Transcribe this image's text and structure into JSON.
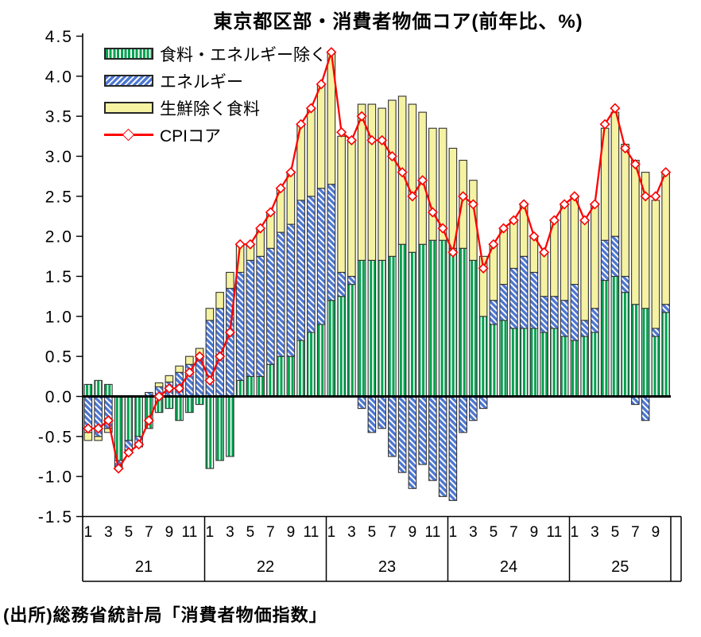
{
  "source_note": "(出所)総務省統計局「消費者物価指数」",
  "chart_data": {
    "type": "stacked-bar-with-line",
    "title": "東京都区部・消費者物価コア(前年比、%)",
    "unit": "percentage points (contribution) / % (line)",
    "y_axis": {
      "min": -1.5,
      "max": 4.5,
      "step": 0.5,
      "tick_labels": [
        "4.5",
        "4.0",
        "3.5",
        "3.0",
        "2.5",
        "2.0",
        "1.5",
        "1.0",
        "0.5",
        "0.0",
        "-0.5",
        "-1.0",
        "-1.5"
      ]
    },
    "x_axis": {
      "years": [
        {
          "label": "21",
          "n_months": 12
        },
        {
          "label": "22",
          "n_months": 12
        },
        {
          "label": "23",
          "n_months": 12
        },
        {
          "label": "24",
          "n_months": 12
        },
        {
          "label": "25",
          "n_months": 10
        }
      ],
      "first_month": 1,
      "month_label_interval": 2,
      "month_labels_shown": [
        "1",
        "3",
        "5",
        "7",
        "9",
        "11"
      ]
    },
    "colors": {
      "green": "#00A24E",
      "blue": "#4D77D2",
      "yellow": "#F5F2A2",
      "red": "#FF0000",
      "axis": "#000000",
      "bar_border": "#333333"
    },
    "series": [
      {
        "name": "食料・エネルギー除く",
        "fill": "green-stripes",
        "values": [
          0.15,
          0.2,
          0.15,
          -0.8,
          -0.55,
          -0.5,
          -0.4,
          -0.2,
          -0.15,
          -0.3,
          -0.2,
          -0.1,
          -0.9,
          -0.8,
          -0.75,
          0.2,
          0.25,
          0.25,
          0.4,
          0.5,
          0.5,
          0.7,
          0.8,
          0.9,
          1.2,
          1.25,
          1.4,
          1.7,
          1.7,
          1.7,
          1.75,
          1.9,
          1.8,
          1.9,
          1.95,
          1.95,
          1.85,
          1.85,
          1.7,
          1.0,
          0.9,
          0.95,
          0.85,
          0.85,
          0.85,
          0.8,
          0.85,
          0.75,
          0.7,
          0.75,
          0.8,
          1.45,
          1.5,
          1.3,
          1.15,
          1.1,
          0.75,
          1.05
        ]
      },
      {
        "name": "エネルギー",
        "fill": "blue-stripes",
        "values": [
          -0.45,
          -0.5,
          -0.4,
          -0.08,
          -0.12,
          -0.1,
          0.05,
          0.12,
          0.18,
          0.3,
          0.4,
          0.5,
          0.95,
          1.1,
          1.35,
          1.35,
          1.45,
          1.5,
          1.45,
          1.55,
          1.65,
          1.75,
          1.7,
          1.7,
          1.45,
          0.3,
          0.1,
          -0.15,
          -0.45,
          -0.4,
          -0.75,
          -0.95,
          -1.15,
          -0.85,
          -1.05,
          -1.25,
          -1.3,
          -0.45,
          -0.3,
          -0.15,
          0.3,
          0.45,
          0.75,
          0.9,
          0.7,
          0.45,
          0.4,
          0.45,
          0.7,
          0.2,
          0.3,
          0.5,
          0.5,
          0.2,
          -0.1,
          -0.3,
          0.1,
          0.1
        ]
      },
      {
        "name": "生鮮除く食料",
        "fill": "yellow-solid",
        "values": [
          -0.1,
          -0.05,
          -0.05,
          -0.03,
          -0.03,
          -0.03,
          0,
          0.05,
          0.08,
          0.08,
          0.1,
          0.1,
          0.15,
          0.2,
          0.2,
          0.35,
          0.2,
          0.35,
          0.45,
          0.55,
          0.65,
          0.95,
          1.1,
          1.3,
          1.65,
          1.7,
          1.7,
          1.95,
          1.95,
          1.9,
          1.95,
          1.85,
          1.85,
          1.65,
          1.4,
          1.4,
          1.25,
          1.1,
          1.0,
          0.75,
          0.7,
          0.7,
          0.6,
          0.65,
          0.45,
          0.55,
          0.95,
          1.2,
          1.1,
          1.25,
          1.3,
          1.4,
          1.55,
          1.65,
          1.8,
          1.7,
          1.6,
          1.65
        ]
      }
    ],
    "line": {
      "name": "CPIコア",
      "marker": "diamond",
      "values": [
        -0.4,
        -0.4,
        -0.3,
        -0.9,
        -0.7,
        -0.6,
        -0.3,
        0,
        0.1,
        0.1,
        0.3,
        0.5,
        0.2,
        0.5,
        0.8,
        1.9,
        1.9,
        2.1,
        2.3,
        2.6,
        2.8,
        3.4,
        3.6,
        3.9,
        4.3,
        3.3,
        3.2,
        3.5,
        3.2,
        3.2,
        3.0,
        2.8,
        2.5,
        2.7,
        2.3,
        2.1,
        1.8,
        2.5,
        2.4,
        1.6,
        1.9,
        2.1,
        2.2,
        2.4,
        2.0,
        1.8,
        2.2,
        2.4,
        2.5,
        2.2,
        2.4,
        3.4,
        3.6,
        3.1,
        2.9,
        2.5,
        2.5,
        2.8
      ]
    }
  }
}
